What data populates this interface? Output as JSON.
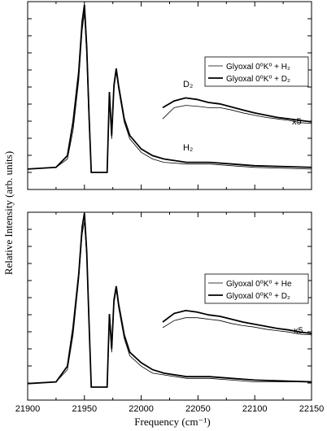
{
  "figure": {
    "ylabel": "Relative Intensity (arb. units)",
    "xlabel": "Frequency (cm⁻¹)"
  },
  "chart_data": [
    {
      "type": "line",
      "panel": "top",
      "xlim": [
        21900,
        22150
      ],
      "x_ticks": [
        21900,
        21950,
        22000,
        22050,
        22100,
        22150
      ],
      "y_ticks": "unlabeled",
      "grid": false,
      "legend_position": "top-right",
      "series": [
        {
          "name": "Glyoxal 0⁰K⁰ + H₂",
          "style": "thin",
          "points": [
            [
              21900,
              0.02
            ],
            [
              21925,
              0.03
            ],
            [
              21935,
              0.08
            ],
            [
              21940,
              0.25
            ],
            [
              21945,
              0.55
            ],
            [
              21948,
              0.85
            ],
            [
              21950,
              0.95
            ],
            [
              21952,
              0.7
            ],
            [
              21954,
              0.3
            ],
            [
              21956,
              0.0
            ],
            [
              21970,
              0.0
            ],
            [
              21972,
              0.45
            ],
            [
              21974,
              0.2
            ],
            [
              21976,
              0.5
            ],
            [
              21978,
              0.6
            ],
            [
              21980,
              0.5
            ],
            [
              21985,
              0.3
            ],
            [
              21990,
              0.2
            ],
            [
              22000,
              0.12
            ],
            [
              22010,
              0.08
            ],
            [
              22020,
              0.06
            ],
            [
              22040,
              0.05
            ],
            [
              22060,
              0.05
            ],
            [
              22080,
              0.04
            ],
            [
              22100,
              0.03
            ],
            [
              22150,
              0.02
            ]
          ]
        },
        {
          "name": "Glyoxal 0⁰K⁰ + D₂",
          "style": "thick",
          "points": [
            [
              21900,
              0.02
            ],
            [
              21925,
              0.03
            ],
            [
              21935,
              0.1
            ],
            [
              21940,
              0.3
            ],
            [
              21945,
              0.6
            ],
            [
              21948,
              0.9
            ],
            [
              21950,
              1.0
            ],
            [
              21952,
              0.75
            ],
            [
              21954,
              0.35
            ],
            [
              21956,
              0.0
            ],
            [
              21970,
              0.0
            ],
            [
              21972,
              0.48
            ],
            [
              21974,
              0.22
            ],
            [
              21976,
              0.52
            ],
            [
              21978,
              0.62
            ],
            [
              21980,
              0.52
            ],
            [
              21985,
              0.32
            ],
            [
              21990,
              0.22
            ],
            [
              22000,
              0.14
            ],
            [
              22010,
              0.1
            ],
            [
              22020,
              0.08
            ],
            [
              22040,
              0.06
            ],
            [
              22060,
              0.06
            ],
            [
              22080,
              0.05
            ],
            [
              22100,
              0.04
            ],
            [
              22150,
              0.03
            ]
          ]
        }
      ],
      "inset": {
        "scale_label": "x5",
        "xlim": [
          22020,
          22150
        ],
        "series": [
          {
            "name": "Glyoxal 0⁰K⁰ + H₂",
            "label": "H₂",
            "points": [
              [
                22020,
                0.4
              ],
              [
                22030,
                0.55
              ],
              [
                22040,
                0.58
              ],
              [
                22050,
                0.57
              ],
              [
                22060,
                0.55
              ],
              [
                22070,
                0.55
              ],
              [
                22080,
                0.52
              ],
              [
                22090,
                0.48
              ],
              [
                22100,
                0.45
              ],
              [
                22110,
                0.42
              ],
              [
                22120,
                0.4
              ],
              [
                22130,
                0.38
              ],
              [
                22140,
                0.35
              ],
              [
                22150,
                0.34
              ]
            ]
          },
          {
            "name": "Glyoxal 0⁰K⁰ + D₂",
            "label": "D₂",
            "points": [
              [
                22020,
                0.55
              ],
              [
                22030,
                0.64
              ],
              [
                22040,
                0.68
              ],
              [
                22050,
                0.66
              ],
              [
                22060,
                0.62
              ],
              [
                22070,
                0.6
              ],
              [
                22080,
                0.56
              ],
              [
                22090,
                0.52
              ],
              [
                22100,
                0.48
              ],
              [
                22110,
                0.45
              ],
              [
                22120,
                0.42
              ],
              [
                22130,
                0.4
              ],
              [
                22140,
                0.38
              ],
              [
                22150,
                0.36
              ]
            ]
          }
        ]
      }
    },
    {
      "type": "line",
      "panel": "bottom",
      "xlim": [
        21900,
        22150
      ],
      "x_ticks": [
        21900,
        21950,
        22000,
        22050,
        22100,
        22150
      ],
      "y_ticks": "unlabeled",
      "grid": false,
      "legend_position": "top-right",
      "series": [
        {
          "name": "Glyoxal 0⁰K⁰ + He",
          "style": "thin",
          "points": [
            [
              21900,
              0.02
            ],
            [
              21925,
              0.03
            ],
            [
              21935,
              0.1
            ],
            [
              21940,
              0.3
            ],
            [
              21945,
              0.62
            ],
            [
              21948,
              0.88
            ],
            [
              21950,
              0.95
            ],
            [
              21952,
              0.75
            ],
            [
              21954,
              0.35
            ],
            [
              21956,
              0.0
            ],
            [
              21970,
              0.0
            ],
            [
              21972,
              0.4
            ],
            [
              21974,
              0.2
            ],
            [
              21976,
              0.48
            ],
            [
              21978,
              0.56
            ],
            [
              21980,
              0.46
            ],
            [
              21985,
              0.28
            ],
            [
              21990,
              0.18
            ],
            [
              22000,
              0.12
            ],
            [
              22010,
              0.08
            ],
            [
              22020,
              0.07
            ],
            [
              22040,
              0.05
            ],
            [
              22060,
              0.05
            ],
            [
              22080,
              0.04
            ],
            [
              22100,
              0.03
            ],
            [
              22150,
              0.03
            ]
          ]
        },
        {
          "name": "Glyoxal 0⁰K⁰ + D₂",
          "style": "thick",
          "points": [
            [
              21900,
              0.02
            ],
            [
              21925,
              0.03
            ],
            [
              21935,
              0.12
            ],
            [
              21940,
              0.34
            ],
            [
              21945,
              0.65
            ],
            [
              21948,
              0.92
            ],
            [
              21950,
              1.0
            ],
            [
              21952,
              0.78
            ],
            [
              21954,
              0.38
            ],
            [
              21956,
              0.0
            ],
            [
              21970,
              0.0
            ],
            [
              21972,
              0.42
            ],
            [
              21974,
              0.22
            ],
            [
              21976,
              0.5
            ],
            [
              21978,
              0.58
            ],
            [
              21980,
              0.48
            ],
            [
              21985,
              0.3
            ],
            [
              21990,
              0.2
            ],
            [
              22000,
              0.14
            ],
            [
              22010,
              0.1
            ],
            [
              22020,
              0.08
            ],
            [
              22040,
              0.06
            ],
            [
              22060,
              0.06
            ],
            [
              22080,
              0.05
            ],
            [
              22100,
              0.04
            ],
            [
              22150,
              0.03
            ]
          ]
        }
      ],
      "inset": {
        "scale_label": "x5",
        "xlim": [
          22020,
          22150
        ],
        "series": [
          {
            "name": "Glyoxal 0⁰K⁰ + He",
            "points": [
              [
                22020,
                0.42
              ],
              [
                22030,
                0.52
              ],
              [
                22040,
                0.56
              ],
              [
                22050,
                0.56
              ],
              [
                22060,
                0.54
              ],
              [
                22070,
                0.52
              ],
              [
                22080,
                0.48
              ],
              [
                22090,
                0.45
              ],
              [
                22100,
                0.43
              ],
              [
                22110,
                0.4
              ],
              [
                22120,
                0.38
              ],
              [
                22130,
                0.36
              ],
              [
                22140,
                0.33
              ],
              [
                22150,
                0.32
              ]
            ]
          },
          {
            "name": "Glyoxal 0⁰K⁰ + D₂",
            "points": [
              [
                22020,
                0.5
              ],
              [
                22030,
                0.62
              ],
              [
                22040,
                0.66
              ],
              [
                22050,
                0.64
              ],
              [
                22060,
                0.6
              ],
              [
                22070,
                0.58
              ],
              [
                22080,
                0.54
              ],
              [
                22090,
                0.5
              ],
              [
                22100,
                0.47
              ],
              [
                22110,
                0.44
              ],
              [
                22120,
                0.41
              ],
              [
                22130,
                0.39
              ],
              [
                22140,
                0.36
              ],
              [
                22150,
                0.34
              ]
            ]
          }
        ]
      }
    }
  ]
}
